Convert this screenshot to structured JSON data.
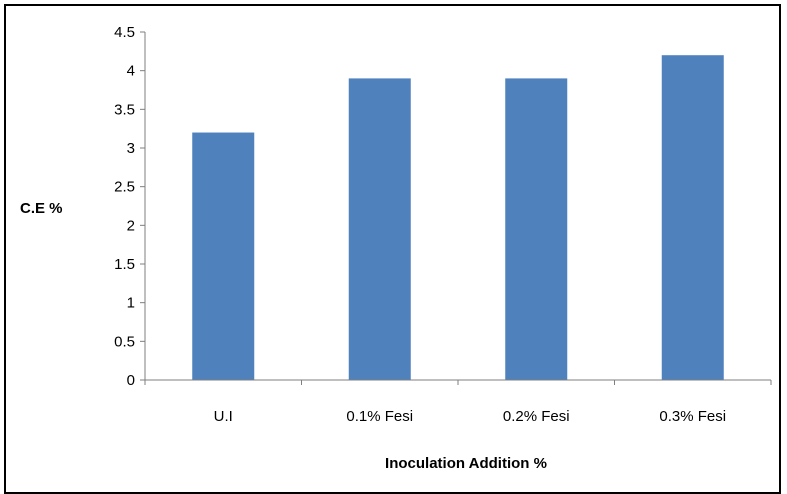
{
  "chart_data": {
    "type": "bar",
    "title": "",
    "xlabel": "Inoculation Addition %",
    "ylabel": "C.E %",
    "categories": [
      "U.I",
      "0.1% Fesi",
      "0.2% Fesi",
      "0.3% Fesi"
    ],
    "values": [
      3.2,
      3.9,
      3.9,
      4.2
    ],
    "ylim": [
      0,
      4.5
    ],
    "yticks": [
      "0",
      "0.5",
      "1",
      "1.5",
      "2",
      "2.5",
      "3",
      "3.5",
      "4",
      "4.5"
    ],
    "grid": false,
    "legend": "none",
    "bar_color": "#4F81BD"
  }
}
